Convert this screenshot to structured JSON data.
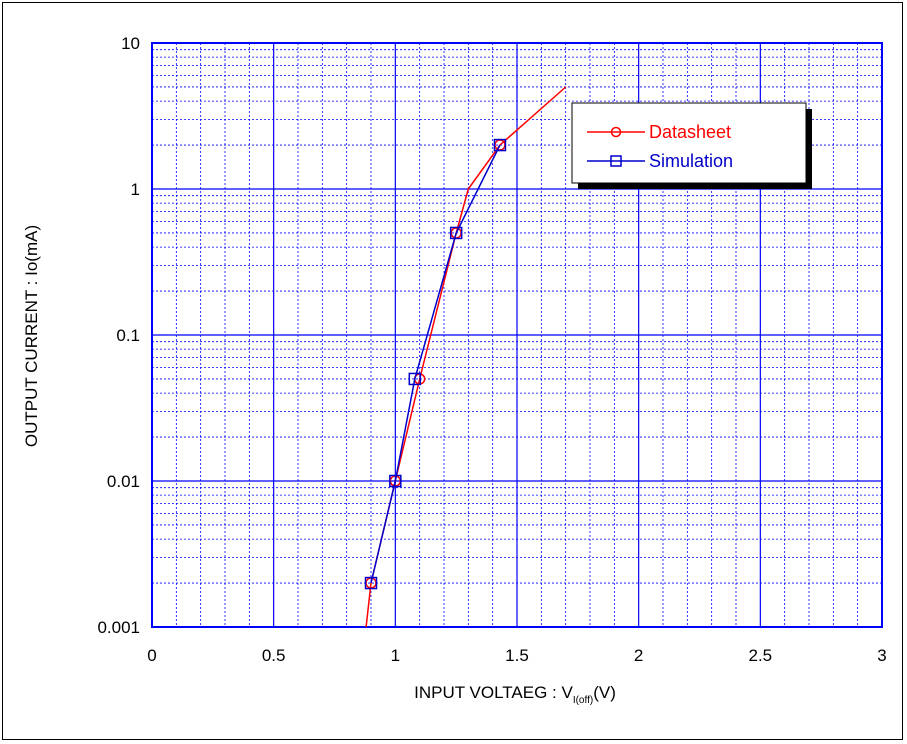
{
  "chart_data": {
    "type": "line",
    "xlabel": "INPUT VOLTAEG : V",
    "xlabel_sub": "I(off)",
    "xlabel_unit": "(V)",
    "ylabel": "OUTPUT CURRENT : Io(mA)",
    "xlim": [
      0,
      3
    ],
    "ylim": [
      0.001,
      10
    ],
    "yscale": "log",
    "grid": true,
    "legend_position": "top-right",
    "x_tick_labels": [
      "0",
      "0.5",
      "1",
      "1.5",
      "2",
      "2.5",
      "3"
    ],
    "y_tick_labels": [
      "0.001",
      "0.01",
      "0.1",
      "1",
      "10"
    ],
    "colors": {
      "datasheet": "#ff0000",
      "simulation": "#0000cc",
      "grid": "#0000ff"
    },
    "series": [
      {
        "name": "Datasheet",
        "color": "#ff0000",
        "marker": "circle",
        "points": [
          [
            0.88,
            0.001
          ],
          [
            0.9,
            0.002
          ],
          [
            1.0,
            0.01
          ],
          [
            1.1,
            0.05
          ],
          [
            1.25,
            0.5
          ],
          [
            1.3,
            1.0
          ],
          [
            1.43,
            2.0
          ],
          [
            1.7,
            5.0
          ]
        ],
        "marker_points": [
          [
            0.9,
            0.002
          ],
          [
            1.0,
            0.01
          ],
          [
            1.1,
            0.05
          ],
          [
            1.25,
            0.5
          ],
          [
            1.43,
            2.0
          ]
        ]
      },
      {
        "name": "Simulation",
        "color": "#0000cc",
        "marker": "square",
        "points": [
          [
            0.9,
            0.002
          ],
          [
            1.0,
            0.01
          ],
          [
            1.08,
            0.05
          ],
          [
            1.25,
            0.5
          ],
          [
            1.43,
            2.0
          ]
        ],
        "marker_points": [
          [
            0.9,
            0.002
          ],
          [
            1.0,
            0.01
          ],
          [
            1.08,
            0.05
          ],
          [
            1.25,
            0.5
          ],
          [
            1.43,
            2.0
          ]
        ]
      }
    ]
  }
}
